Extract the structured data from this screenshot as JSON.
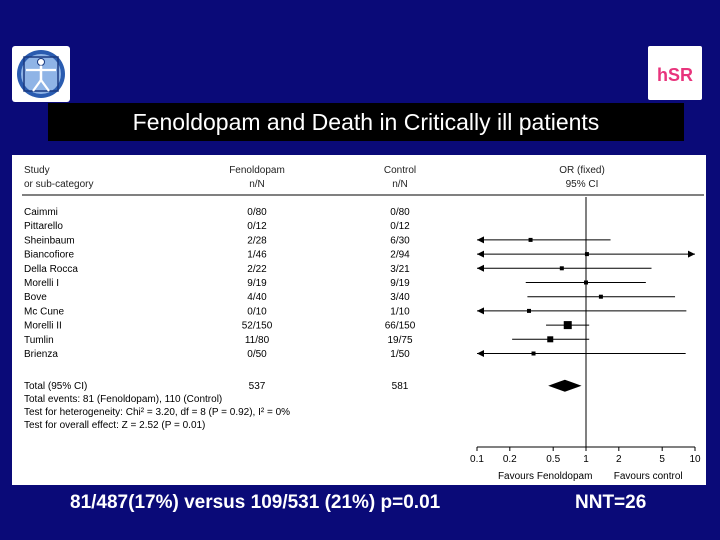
{
  "header": {
    "title": "Fenoldopam and Death in Critically ill patients",
    "logo_left_icon": "vitruvian-man-icon",
    "logo_right_text": "hSR",
    "logo_right_color": "#e8347c"
  },
  "chart_data": {
    "type": "forest",
    "title": "",
    "columns": {
      "study": [
        "Study",
        "or sub-category"
      ],
      "treatment": [
        "Fenoldopam",
        "n/N"
      ],
      "control": [
        "Control",
        "n/N"
      ],
      "effect": [
        "OR (fixed)",
        "95% CI"
      ]
    },
    "studies": [
      {
        "name": "Caimmi",
        "treatment": "0/80",
        "control": "0/80",
        "or": null,
        "lo": null,
        "hi": null
      },
      {
        "name": "Pittarello",
        "treatment": "0/12",
        "control": "0/12",
        "or": null,
        "lo": null,
        "hi": null
      },
      {
        "name": "Sheinbaum",
        "treatment": "2/28",
        "control": "6/30",
        "or": 0.31,
        "lo": 0.06,
        "hi": 1.68,
        "arrow_left": true
      },
      {
        "name": "Biancofiore",
        "treatment": "1/46",
        "control": "2/94",
        "or": 1.02,
        "lo": 0.09,
        "hi": 11.5,
        "arrow_right": true
      },
      {
        "name": "Della Rocca",
        "treatment": "2/22",
        "control": "3/21",
        "or": 0.6,
        "lo": 0.09,
        "hi": 3.99,
        "arrow_left": true
      },
      {
        "name": "Morelli I",
        "treatment": "9/19",
        "control": "9/19",
        "or": 1.0,
        "lo": 0.28,
        "hi": 3.54
      },
      {
        "name": "Bove",
        "treatment": "4/40",
        "control": "3/40",
        "or": 1.37,
        "lo": 0.29,
        "hi": 6.56
      },
      {
        "name": "Mc Cune",
        "treatment": "0/10",
        "control": "1/10",
        "or": 0.3,
        "lo": 0.01,
        "hi": 8.33,
        "arrow_left": true
      },
      {
        "name": "Morelli II",
        "treatment": "52/150",
        "control": "66/150",
        "or": 0.68,
        "lo": 0.43,
        "hi": 1.07
      },
      {
        "name": "Tumlin",
        "treatment": "11/80",
        "control": "19/75",
        "or": 0.47,
        "lo": 0.21,
        "hi": 1.07
      },
      {
        "name": "Brienza",
        "treatment": "0/50",
        "control": "1/50",
        "or": 0.33,
        "lo": 0.01,
        "hi": 8.21,
        "arrow_left": true
      }
    ],
    "total": {
      "name": "Total (95% CI)",
      "treatment": "537",
      "control": "581",
      "or": 0.64,
      "lo": 0.45,
      "hi": 0.91
    },
    "footnotes": [
      "Total events: 81 (Fenoldopam), 110 (Control)",
      "Test for heterogeneity: Chi² = 3.20, df = 8 (P = 0.92), I² = 0%",
      "Test for overall effect: Z = 2.52 (P = 0.01)"
    ],
    "x_axis": {
      "scale": "log",
      "range": [
        0.1,
        10
      ],
      "ticks": [
        0.1,
        0.2,
        0.5,
        1,
        2,
        5,
        10
      ],
      "tick_labels": [
        "0.1",
        "0.2",
        "0.5",
        "1",
        "2",
        "5",
        "10"
      ]
    },
    "favours": {
      "left": "Favours Fenoldopam",
      "right": "Favours control"
    }
  },
  "footer": {
    "summary": "81/487(17%) versus 109/531 (21%)  p=0.01",
    "nnt": "NNT=26"
  }
}
